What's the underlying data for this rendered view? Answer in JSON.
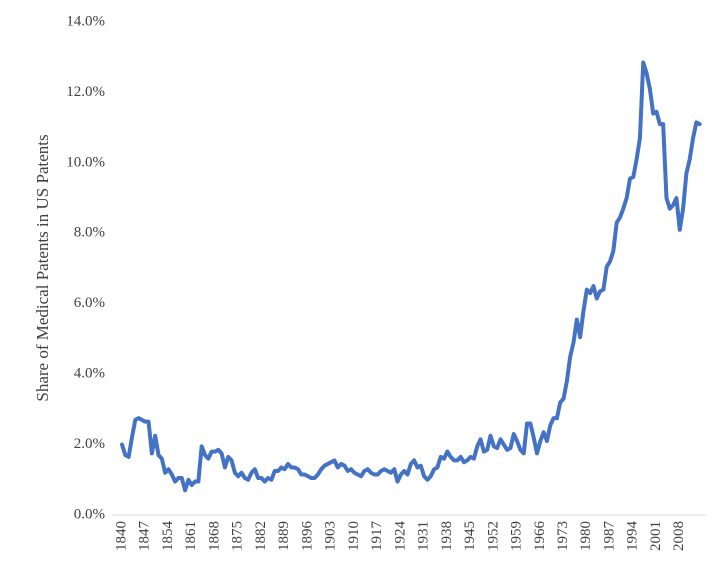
{
  "chart_data": {
    "type": "line",
    "ylabel": "Share of Medical Patents in US Patents",
    "color": "#4472c4",
    "grid": false,
    "xlim": [
      1840,
      2015
    ],
    "xticks": [
      1840,
      1847,
      1854,
      1861,
      1868,
      1875,
      1882,
      1889,
      1896,
      1903,
      1910,
      1917,
      1924,
      1931,
      1938,
      1945,
      1952,
      1959,
      1966,
      1973,
      1980,
      1987,
      1994,
      2001,
      2008
    ],
    "ylim": [
      0,
      14
    ],
    "yticks": [
      {
        "value": 0,
        "label": "0.0%"
      },
      {
        "value": 2,
        "label": "2.0%"
      },
      {
        "value": 4,
        "label": "4.0%"
      },
      {
        "value": 6,
        "label": "6.0%"
      },
      {
        "value": 8,
        "label": "8.0%"
      },
      {
        "value": 10,
        "label": "10.0%"
      },
      {
        "value": 12,
        "label": "12.0%"
      },
      {
        "value": 14,
        "label": "14.0%"
      }
    ],
    "x": [
      1840,
      1841,
      1842,
      1843,
      1844,
      1845,
      1846,
      1847,
      1848,
      1849,
      1850,
      1851,
      1852,
      1853,
      1854,
      1855,
      1856,
      1857,
      1858,
      1859,
      1860,
      1861,
      1862,
      1863,
      1864,
      1865,
      1866,
      1867,
      1868,
      1869,
      1870,
      1871,
      1872,
      1873,
      1874,
      1875,
      1876,
      1877,
      1878,
      1879,
      1880,
      1881,
      1882,
      1883,
      1884,
      1885,
      1886,
      1887,
      1888,
      1889,
      1890,
      1891,
      1892,
      1893,
      1894,
      1895,
      1896,
      1897,
      1898,
      1899,
      1900,
      1901,
      1902,
      1903,
      1904,
      1905,
      1906,
      1907,
      1908,
      1909,
      1910,
      1911,
      1912,
      1913,
      1914,
      1915,
      1916,
      1917,
      1918,
      1919,
      1920,
      1921,
      1922,
      1923,
      1924,
      1925,
      1926,
      1927,
      1928,
      1929,
      1930,
      1931,
      1932,
      1933,
      1934,
      1935,
      1936,
      1937,
      1938,
      1939,
      1940,
      1941,
      1942,
      1943,
      1944,
      1945,
      1946,
      1947,
      1948,
      1949,
      1950,
      1951,
      1952,
      1953,
      1954,
      1955,
      1956,
      1957,
      1958,
      1959,
      1960,
      1961,
      1962,
      1963,
      1964,
      1965,
      1966,
      1967,
      1968,
      1969,
      1970,
      1971,
      1972,
      1973,
      1974,
      1975,
      1976,
      1977,
      1978,
      1979,
      1980,
      1981,
      1982,
      1983,
      1984,
      1985,
      1986,
      1987,
      1988,
      1989,
      1990,
      1991,
      1992,
      1993,
      1994,
      1995,
      1996,
      1997,
      1998,
      1999,
      2000,
      2001,
      2002,
      2003,
      2004,
      2005,
      2006,
      2007,
      2008,
      2009,
      2010,
      2011,
      2012,
      2013,
      2014
    ],
    "values": [
      2.0,
      1.7,
      1.65,
      2.2,
      2.7,
      2.75,
      2.7,
      2.65,
      2.65,
      1.75,
      2.25,
      1.7,
      1.6,
      1.2,
      1.3,
      1.15,
      0.95,
      1.05,
      1.05,
      0.7,
      1.0,
      0.85,
      0.95,
      0.95,
      1.95,
      1.7,
      1.6,
      1.8,
      1.8,
      1.85,
      1.75,
      1.35,
      1.65,
      1.55,
      1.2,
      1.1,
      1.2,
      1.05,
      1.0,
      1.2,
      1.3,
      1.05,
      1.05,
      0.95,
      1.05,
      1.0,
      1.25,
      1.25,
      1.35,
      1.3,
      1.45,
      1.35,
      1.35,
      1.3,
      1.15,
      1.15,
      1.1,
      1.05,
      1.05,
      1.15,
      1.3,
      1.4,
      1.45,
      1.5,
      1.55,
      1.35,
      1.45,
      1.4,
      1.25,
      1.3,
      1.2,
      1.15,
      1.1,
      1.25,
      1.3,
      1.2,
      1.15,
      1.15,
      1.25,
      1.3,
      1.25,
      1.2,
      1.3,
      0.95,
      1.15,
      1.25,
      1.15,
      1.45,
      1.55,
      1.35,
      1.4,
      1.1,
      1.0,
      1.1,
      1.3,
      1.35,
      1.65,
      1.6,
      1.8,
      1.65,
      1.55,
      1.55,
      1.65,
      1.5,
      1.55,
      1.65,
      1.6,
      1.95,
      2.15,
      1.8,
      1.85,
      2.25,
      1.95,
      1.9,
      2.15,
      2.0,
      1.85,
      1.9,
      2.3,
      2.1,
      1.85,
      1.75,
      2.6,
      2.6,
      2.2,
      1.75,
      2.1,
      2.35,
      2.1,
      2.55,
      2.75,
      2.75,
      3.2,
      3.3,
      3.8,
      4.5,
      4.9,
      5.55,
      5.05,
      5.8,
      6.4,
      6.3,
      6.5,
      6.15,
      6.35,
      6.4,
      7.05,
      7.2,
      7.5,
      8.3,
      8.45,
      8.7,
      9.0,
      9.55,
      9.6,
      10.1,
      10.7,
      12.85,
      12.55,
      12.1,
      11.4,
      11.45,
      11.1,
      11.1,
      9.0,
      8.7,
      8.8,
      9.0,
      8.1,
      8.7,
      9.7,
      10.1,
      10.7,
      11.15,
      11.1
    ]
  }
}
